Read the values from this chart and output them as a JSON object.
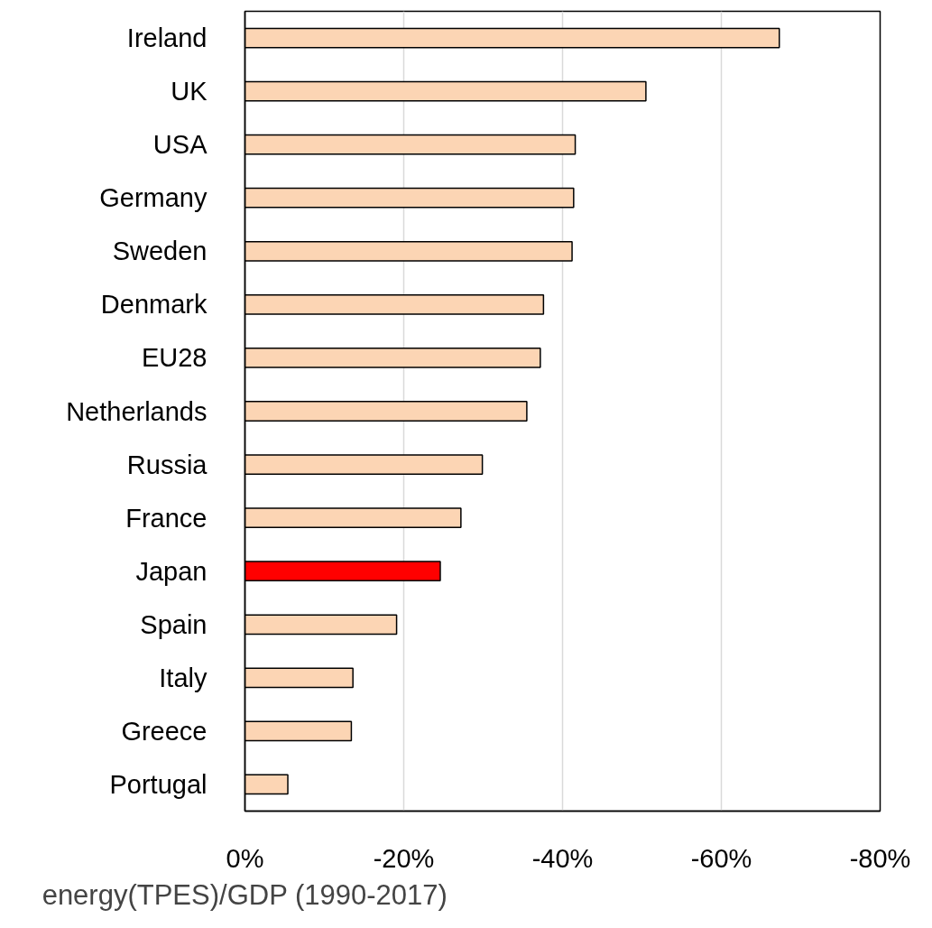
{
  "chart_data": {
    "type": "bar",
    "orientation": "horizontal",
    "xlabel": "energy(TPES)/GDP (1990-2017)",
    "categories": [
      "Ireland",
      "UK",
      "USA",
      "Germany",
      "Sweden",
      "Denmark",
      "EU28",
      "Netherlands",
      "Russia",
      "France",
      "Japan",
      "Spain",
      "Italy",
      "Greece",
      "Portugal"
    ],
    "values": [
      -67.3,
      -50.5,
      -41.6,
      -41.4,
      -41.2,
      -37.6,
      -37.2,
      -35.5,
      -29.9,
      -27.2,
      -24.6,
      -19.1,
      -13.6,
      -13.4,
      -5.4
    ],
    "colors": [
      "#fcd5b4",
      "#fcd5b4",
      "#fcd5b4",
      "#fcd5b4",
      "#fcd5b4",
      "#fcd5b4",
      "#fcd5b4",
      "#fcd5b4",
      "#fcd5b4",
      "#fcd5b4",
      "#ff0000",
      "#fcd5b4",
      "#fcd5b4",
      "#fcd5b4",
      "#fcd5b4"
    ],
    "xlim": [
      0,
      -80
    ],
    "xticks": [
      {
        "value": 0,
        "label": "0%"
      },
      {
        "value": -20,
        "label": "-20%"
      },
      {
        "value": -40,
        "label": "-40%"
      },
      {
        "value": -60,
        "label": "-60%"
      },
      {
        "value": -80,
        "label": "-80%"
      }
    ],
    "grid": "x"
  }
}
